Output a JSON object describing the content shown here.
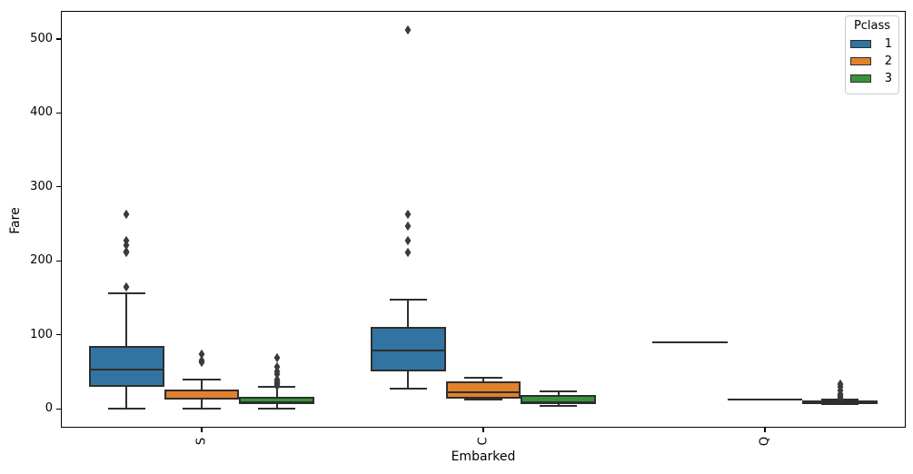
{
  "chart_data": {
    "type": "boxplot",
    "title": "",
    "xlabel": "Embarked",
    "ylabel": "Fare",
    "categories": [
      "S",
      "C",
      "Q"
    ],
    "yticks": [
      0,
      100,
      200,
      300,
      400,
      500
    ],
    "ylim": [
      -25.6,
      538
    ],
    "grid": false,
    "edge_color": "#2e2e2e",
    "outlier_color": "#3a3a3a",
    "legend": {
      "title": "Pclass",
      "position": "upper right",
      "entries": [
        {
          "label": "1",
          "color": "#3274A1"
        },
        {
          "label": "2",
          "color": "#E1812C"
        },
        {
          "label": "3",
          "color": "#3A923A"
        }
      ]
    },
    "series": [
      {
        "name": "1",
        "color": "#3274A1",
        "boxes": [
          {
            "category": "S",
            "whislo": 0,
            "q1": 29.7,
            "med": 53,
            "q3": 85,
            "whishi": 156,
            "outliers": [
              164.9,
              211.5,
              212.3,
              221.8,
              227.5,
              263
            ]
          },
          {
            "category": "C",
            "whislo": 27.7,
            "q1": 50,
            "med": 79,
            "q3": 111,
            "whishi": 147,
            "outliers": [
              211.5,
              227.5,
              247.5,
              262.4,
              512.3
            ]
          },
          {
            "category": "Q",
            "whislo": 90,
            "q1": 90,
            "med": 90,
            "q3": 90,
            "whishi": 90,
            "outliers": []
          }
        ]
      },
      {
        "name": "2",
        "color": "#E1812C",
        "boxes": [
          {
            "category": "S",
            "whislo": 0,
            "q1": 12,
            "med": 13.5,
            "q3": 26,
            "whishi": 40,
            "outliers": [
              63.4,
              65,
              73.5
            ]
          },
          {
            "category": "C",
            "whislo": 12.35,
            "q1": 14,
            "med": 22,
            "q3": 36.5,
            "whishi": 41.6,
            "outliers": []
          },
          {
            "category": "Q",
            "whislo": 12.35,
            "q1": 12.35,
            "med": 12.35,
            "q3": 12.35,
            "whishi": 12.35,
            "outliers": []
          }
        ]
      },
      {
        "name": "3",
        "color": "#3A923A",
        "boxes": [
          {
            "category": "S",
            "whislo": 0,
            "q1": 7.9,
            "med": 8.05,
            "q3": 15.9,
            "whishi": 29.5,
            "outliers": [
              31.3,
              33,
              34.4,
              36.6,
              39.7,
              46.9,
              50.5,
              56.5,
              69.55
            ]
          },
          {
            "category": "C",
            "whislo": 4,
            "q1": 7.9,
            "med": 8.05,
            "q3": 18.5,
            "whishi": 23.7,
            "outliers": []
          },
          {
            "category": "Q",
            "whislo": 6.75,
            "q1": 7.25,
            "med": 7.75,
            "q3": 11.5,
            "whishi": 13,
            "outliers": [
              15.5,
              16.1,
              18.75,
              20.25,
              24.15,
              29.1,
              33
            ]
          }
        ]
      }
    ]
  }
}
